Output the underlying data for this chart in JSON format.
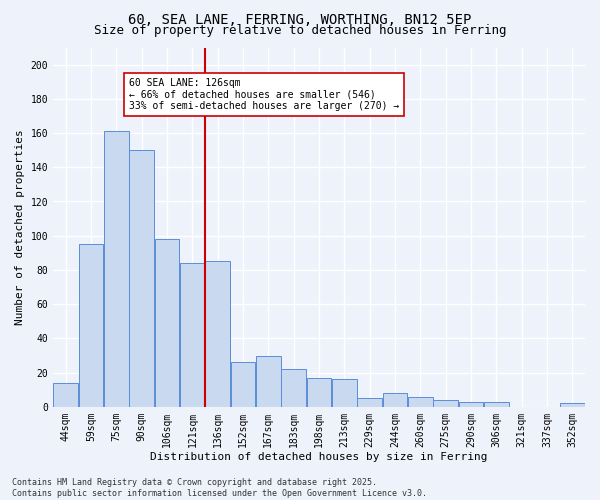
{
  "title_line1": "60, SEA LANE, FERRING, WORTHING, BN12 5EP",
  "title_line2": "Size of property relative to detached houses in Ferring",
  "xlabel": "Distribution of detached houses by size in Ferring",
  "ylabel": "Number of detached properties",
  "bar_labels": [
    "44sqm",
    "59sqm",
    "75sqm",
    "90sqm",
    "106sqm",
    "121sqm",
    "136sqm",
    "152sqm",
    "167sqm",
    "183sqm",
    "198sqm",
    "213sqm",
    "229sqm",
    "244sqm",
    "260sqm",
    "275sqm",
    "290sqm",
    "306sqm",
    "321sqm",
    "337sqm",
    "352sqm"
  ],
  "bar_values": [
    14,
    95,
    161,
    150,
    98,
    84,
    85,
    26,
    30,
    22,
    17,
    16,
    5,
    8,
    6,
    4,
    3,
    3,
    0,
    0,
    2
  ],
  "bar_color": "#c8d9f0",
  "bar_edge_color": "#5b8dd9",
  "vline_color": "#cc0000",
  "annotation_text": "60 SEA LANE: 126sqm\n← 66% of detached houses are smaller (546)\n33% of semi-detached houses are larger (270) →",
  "annotation_box_facecolor": "#ffffff",
  "annotation_box_edgecolor": "#cc0000",
  "ylim": [
    0,
    210
  ],
  "yticks": [
    0,
    20,
    40,
    60,
    80,
    100,
    120,
    140,
    160,
    180,
    200
  ],
  "footer": "Contains HM Land Registry data © Crown copyright and database right 2025.\nContains public sector information licensed under the Open Government Licence v3.0.",
  "bg_color": "#eef2fb",
  "plot_bg_color": "#eef2fb",
  "grid_color": "#ffffff",
  "title_fontsize": 10,
  "subtitle_fontsize": 9,
  "ylabel_fontsize": 8,
  "xlabel_fontsize": 8,
  "tick_fontsize": 7,
  "annotation_fontsize": 7,
  "footer_fontsize": 6
}
